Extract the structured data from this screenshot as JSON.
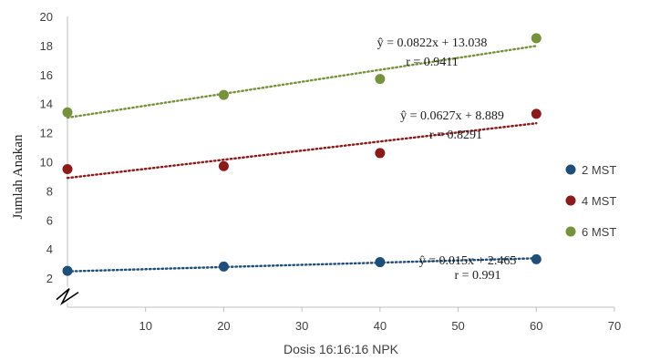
{
  "chart_data": {
    "type": "scatter",
    "title": "",
    "xlabel": "Dosis 16:16:16 NPK",
    "ylabel": "Jumlah Anakan",
    "xlim": [
      0,
      70
    ],
    "ylim": [
      0,
      20
    ],
    "x_ticks": [
      10,
      20,
      30,
      40,
      50,
      60,
      70
    ],
    "y_ticks": [
      2,
      4,
      6,
      8,
      10,
      12,
      14,
      16,
      18,
      20
    ],
    "x_tick_labels": [
      "10",
      "20",
      "30",
      "40",
      "50",
      "60",
      "70"
    ],
    "y_tick_labels": [
      "2",
      "4",
      "6",
      "8",
      "10",
      "12",
      "14",
      "16",
      "18",
      "20"
    ],
    "y_axis_break": true,
    "grid": false,
    "legend_position": "right",
    "series": [
      {
        "name": "2 MST",
        "color": "#1f4e79",
        "x": [
          0,
          20,
          40,
          60
        ],
        "y": [
          2.5,
          2.8,
          3.1,
          3.3
        ],
        "trendline": {
          "slope": 0.015,
          "intercept": 2.465,
          "equation": "ŷ = 0.015x + 2.465",
          "r": "r = 0.991"
        }
      },
      {
        "name": "4 MST",
        "color": "#8b1a1a",
        "x": [
          0,
          20,
          40,
          60
        ],
        "y": [
          9.5,
          9.7,
          10.6,
          13.3
        ],
        "trendline": {
          "slope": 0.0627,
          "intercept": 8.889,
          "equation": "ŷ = 0.0627x + 8.889",
          "r": "r = 0.8291"
        }
      },
      {
        "name": "6 MST",
        "color": "#76923c",
        "x": [
          0,
          20,
          40,
          60
        ],
        "y": [
          13.4,
          14.6,
          15.7,
          18.5
        ],
        "trendline": {
          "slope": 0.0822,
          "intercept": 13.038,
          "equation": "ŷ = 0.0822x + 13.038",
          "r": "r = 0.9411"
        }
      }
    ]
  }
}
